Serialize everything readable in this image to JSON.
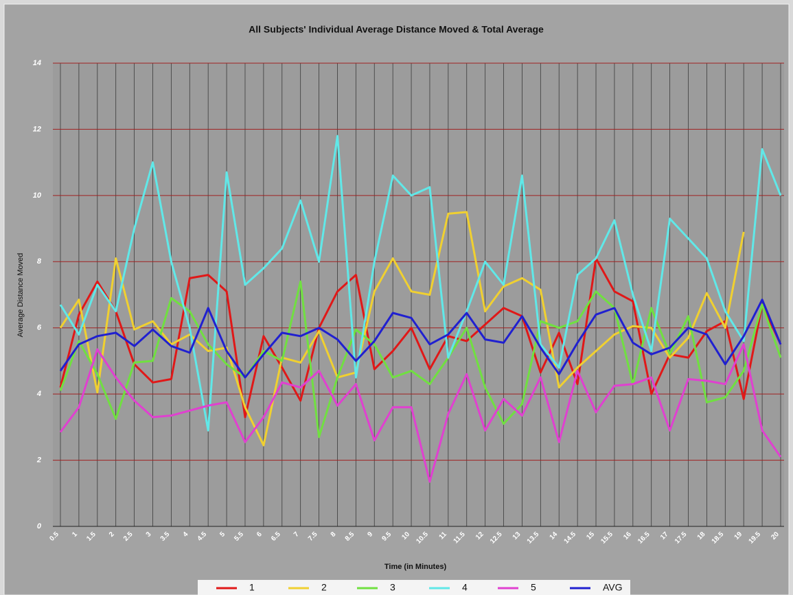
{
  "chart_data": {
    "type": "line",
    "title": "All Subjects' Individual Average Distance Moved & Total Average",
    "y_label": "Average Distance Moved",
    "x_label": "Time (in Minutes)",
    "categories": [
      "0.5",
      "1",
      "1.5",
      "2",
      "2.5",
      "3",
      "3.5",
      "4",
      "4.5",
      "5",
      "5.5",
      "6",
      "6.5",
      "7",
      "7.5",
      "8",
      "8.5",
      "9",
      "9.5",
      "10",
      "10.5",
      "11",
      "11.5",
      "12",
      "12.5",
      "13",
      "13.5",
      "14",
      "14.5",
      "15",
      "15.5",
      "16",
      "16.5",
      "17",
      "17.5",
      "18",
      "18.5",
      "19",
      "19.5",
      "20"
    ],
    "ylim": [
      0,
      14
    ],
    "yticks": [
      0,
      2,
      4,
      6,
      8,
      10,
      12,
      14
    ],
    "grid": true,
    "series": [
      {
        "name": "1",
        "color": "#e01818",
        "values": [
          4.2,
          6.4,
          7.4,
          6.5,
          4.9,
          4.35,
          4.45,
          7.5,
          7.6,
          7.1,
          3.3,
          5.75,
          4.8,
          3.8,
          6.0,
          7.1,
          7.6,
          4.75,
          5.3,
          6.0,
          4.75,
          5.75,
          5.6,
          6.1,
          6.6,
          6.35,
          4.65,
          5.85,
          4.3,
          8.1,
          7.1,
          6.8,
          4.0,
          5.2,
          5.1,
          5.9,
          6.2,
          3.85,
          6.7,
          5.5
        ]
      },
      {
        "name": "2",
        "color": "#f0d030",
        "values": [
          6.0,
          6.85,
          4.05,
          8.1,
          5.95,
          6.2,
          5.5,
          5.8,
          5.3,
          5.4,
          3.6,
          2.45,
          5.1,
          4.95,
          5.9,
          4.5,
          4.65,
          7.1,
          8.1,
          7.1,
          7.0,
          9.45,
          9.5,
          6.5,
          7.25,
          7.5,
          7.15,
          4.2,
          4.8,
          5.3,
          5.8,
          6.05,
          6.0,
          5.1,
          5.7,
          7.05,
          6.0,
          8.9,
          null,
          null
        ]
      },
      {
        "name": "3",
        "color": "#70e040",
        "values": [
          4.1,
          5.6,
          4.6,
          3.25,
          4.95,
          5.0,
          6.9,
          6.5,
          5.5,
          4.9,
          4.5,
          5.3,
          5.0,
          7.4,
          2.7,
          4.5,
          5.95,
          5.5,
          4.5,
          4.7,
          4.3,
          5.1,
          6.0,
          4.2,
          3.1,
          3.7,
          6.2,
          6.0,
          6.2,
          7.1,
          6.6,
          4.3,
          6.6,
          5.2,
          6.35,
          3.75,
          3.9,
          4.7,
          6.7,
          5.1
        ]
      },
      {
        "name": "4",
        "color": "#60e8e8",
        "values": [
          6.7,
          5.8,
          7.3,
          6.5,
          9.0,
          11.0,
          8.0,
          6.0,
          2.9,
          10.7,
          7.3,
          7.8,
          8.4,
          9.85,
          8.0,
          11.8,
          4.5,
          8.0,
          10.6,
          10.0,
          10.25,
          5.1,
          6.5,
          8.0,
          7.3,
          10.6,
          5.5,
          4.8,
          7.6,
          8.1,
          9.25,
          7.0,
          5.3,
          9.3,
          8.7,
          8.1,
          6.5,
          5.6,
          11.4,
          10.0
        ]
      },
      {
        "name": "5",
        "color": "#e040d0",
        "values": [
          2.85,
          3.6,
          5.35,
          4.5,
          3.8,
          3.3,
          3.35,
          3.5,
          3.65,
          3.75,
          2.55,
          3.3,
          4.35,
          4.2,
          4.7,
          3.65,
          4.3,
          2.6,
          3.6,
          3.6,
          1.35,
          3.4,
          4.6,
          2.9,
          3.85,
          3.35,
          4.5,
          2.55,
          4.7,
          3.45,
          4.25,
          4.3,
          4.5,
          2.9,
          4.45,
          4.4,
          4.3,
          5.5,
          2.9,
          2.1
        ]
      },
      {
        "name": "AVG",
        "color": "#2020d0",
        "values": [
          4.7,
          5.5,
          5.75,
          5.85,
          5.45,
          5.95,
          5.45,
          5.25,
          6.6,
          5.3,
          4.5,
          5.2,
          5.85,
          5.75,
          6.0,
          5.65,
          5.0,
          5.6,
          6.45,
          6.3,
          5.5,
          5.8,
          6.45,
          5.65,
          5.55,
          6.35,
          5.4,
          4.6,
          5.55,
          6.4,
          6.6,
          5.55,
          5.2,
          5.4,
          6.0,
          5.8,
          4.9,
          5.75,
          6.85,
          5.5
        ]
      }
    ]
  }
}
